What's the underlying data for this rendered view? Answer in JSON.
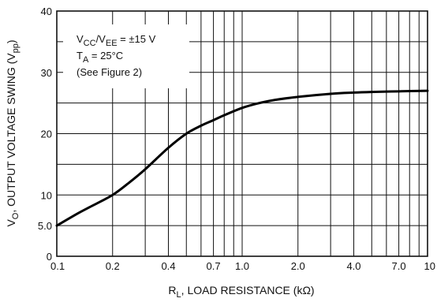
{
  "chart_data": {
    "type": "line",
    "x_scale": "log",
    "y_scale": "linear",
    "xlim": [
      0.1,
      10
    ],
    "ylim": [
      0,
      40
    ],
    "grid": true,
    "x_gridlines": [
      0.1,
      0.2,
      0.3,
      0.4,
      0.5,
      0.6,
      0.7,
      0.8,
      0.9,
      1.0,
      2.0,
      3.0,
      4.0,
      5.0,
      6.0,
      7.0,
      8.0,
      9.0,
      10
    ],
    "y_gridlines": [
      0,
      5,
      10,
      15,
      20,
      25,
      30,
      35,
      40
    ],
    "x_ticks": [
      {
        "value": 0.1,
        "label": "0.1"
      },
      {
        "value": 0.2,
        "label": "0.2"
      },
      {
        "value": 0.4,
        "label": "0.4"
      },
      {
        "value": 0.7,
        "label": "0.7"
      },
      {
        "value": 1.0,
        "label": "1.0"
      },
      {
        "value": 2.0,
        "label": "2.0"
      },
      {
        "value": 4.0,
        "label": "4.0"
      },
      {
        "value": 7.0,
        "label": "7.0"
      },
      {
        "value": 10,
        "label": "10"
      }
    ],
    "y_ticks": [
      {
        "value": 0,
        "label": "0"
      },
      {
        "value": 5,
        "label": "5.0"
      },
      {
        "value": 10,
        "label": "10"
      },
      {
        "value": 20,
        "label": "20"
      },
      {
        "value": 30,
        "label": "30"
      },
      {
        "value": 40,
        "label": "40"
      }
    ],
    "xlabel": {
      "main": "R",
      "sub": "L",
      "rest": ", LOAD RESISTANCE (kΩ)"
    },
    "ylabel": {
      "main": "V",
      "sub": "O",
      "rest": ", OUTPUT VOLTAGE SWING (V",
      "sub2": "pp",
      "end": ")"
    },
    "annotation": {
      "line1": {
        "a": "V",
        "a_sub": "CC",
        "b": "/V",
        "b_sub": "EE",
        "rest": " = ±15 V"
      },
      "line2": {
        "a": "T",
        "a_sub": "A",
        "rest": " = 25°C"
      },
      "line3": "(See Figure 2)"
    },
    "series": [
      {
        "x": [
          0.1,
          0.13,
          0.15,
          0.2,
          0.25,
          0.3,
          0.4,
          0.5,
          0.6,
          0.7,
          0.8,
          1.0,
          1.2,
          1.5,
          2.0,
          3.0,
          4.0,
          5.0,
          7.0,
          10
        ],
        "y": [
          5.0,
          7.0,
          8.0,
          10.0,
          12.2,
          14.2,
          17.7,
          20.0,
          21.3,
          22.2,
          23.0,
          24.2,
          24.9,
          25.5,
          26.0,
          26.5,
          26.7,
          26.8,
          26.9,
          27.0
        ]
      }
    ]
  }
}
